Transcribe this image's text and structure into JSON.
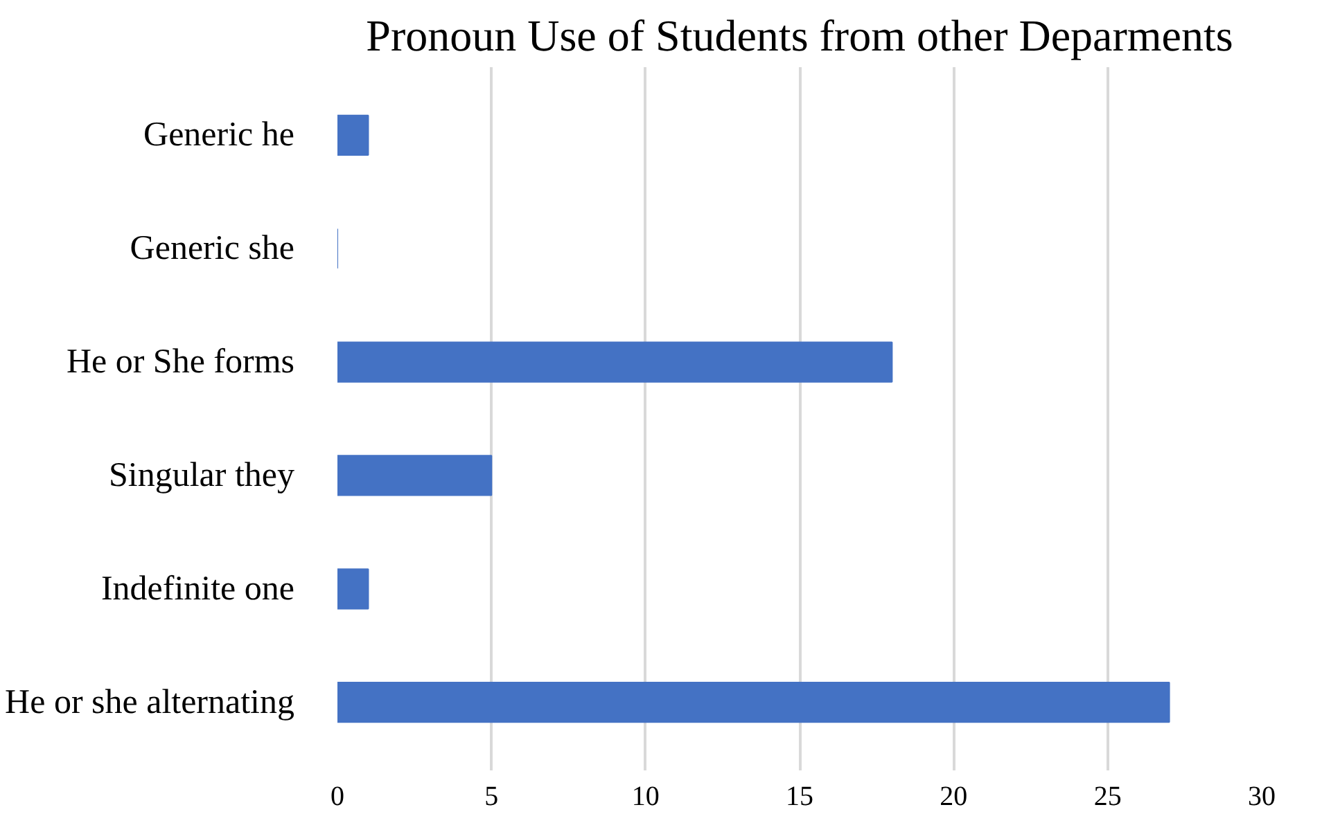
{
  "chart_data": {
    "type": "bar",
    "orientation": "horizontal",
    "title": "Pronoun Use of Students from other Deparments",
    "categories": [
      "Generic he",
      "Generic she",
      "He or She forms",
      "Singular they",
      "Indefinite one",
      "He or she alternating"
    ],
    "values": [
      1,
      0,
      18,
      5,
      1,
      27
    ],
    "color": "#4472c4",
    "xlim": [
      0,
      30
    ],
    "xticks": [
      0,
      5,
      10,
      15,
      20,
      25,
      30
    ],
    "grid": "x"
  }
}
